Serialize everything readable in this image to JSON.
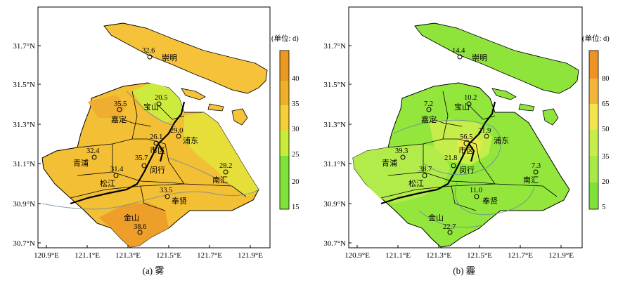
{
  "colors": {
    "fog_colorbar": [
      "#7fe23a",
      "#c9ec3a",
      "#f5cf37",
      "#efb029",
      "#e99822"
    ],
    "haze_colorbar": [
      "#7fe23a",
      "#a7ea46",
      "#c6ee4a",
      "#f2e44a",
      "#f3b53a",
      "#ee9322"
    ]
  },
  "axes": {
    "x_ticks": [
      "120.9°E",
      "121.1°E",
      "121.3°E",
      "121.5°E",
      "121.7°E",
      "121.9°E"
    ],
    "y_ticks": [
      "31.7°N",
      "31.5°N",
      "31.3°N",
      "31.1°N",
      "30.9°N",
      "30.7°N"
    ]
  },
  "districts": [
    "崇明",
    "宝山",
    "嘉定",
    "浦东",
    "市区",
    "青浦",
    "闵行",
    "松江",
    "南汇",
    "奉贤",
    "金山"
  ],
  "panels": [
    {
      "caption": "(a) 雾",
      "colorbar_title": "(单位: d)",
      "colorbar_ticks": [
        "15",
        "20",
        "25",
        "30",
        "35",
        "40"
      ],
      "stations": [
        {
          "value": "32.6",
          "district": "崇明"
        },
        {
          "value": "20.5",
          "district": "宝山"
        },
        {
          "value": "35.5",
          "district": "嘉定"
        },
        {
          "value": "29.0",
          "district": "浦东"
        },
        {
          "value": "26.1",
          "district": "市区"
        },
        {
          "value": "32.4",
          "district": "青浦"
        },
        {
          "value": "35.7",
          "district": "闵行"
        },
        {
          "value": "31.4",
          "district": "松江"
        },
        {
          "value": "28.2",
          "district": "南汇"
        },
        {
          "value": "33.5",
          "district": "奉贤"
        },
        {
          "value": "38.6",
          "district": "金山"
        }
      ]
    },
    {
      "caption": "(b) 霾",
      "colorbar_title": "(单位: d)",
      "colorbar_ticks": [
        "5",
        "20",
        "35",
        "50",
        "65",
        "80"
      ],
      "stations": [
        {
          "value": "14.4",
          "district": "崇明"
        },
        {
          "value": "10.2",
          "district": "宝山"
        },
        {
          "value": "7.2",
          "district": "嘉定"
        },
        {
          "value": "21.9",
          "district": "浦东"
        },
        {
          "value": "56.5",
          "district": "市区"
        },
        {
          "value": "39.3",
          "district": "青浦"
        },
        {
          "value": "21.8",
          "district": "闵行"
        },
        {
          "value": "38.7",
          "district": "松江"
        },
        {
          "value": "7.3",
          "district": "南汇"
        },
        {
          "value": "11.0",
          "district": "奉贤"
        },
        {
          "value": "22.7",
          "district": "金山"
        }
      ]
    }
  ]
}
